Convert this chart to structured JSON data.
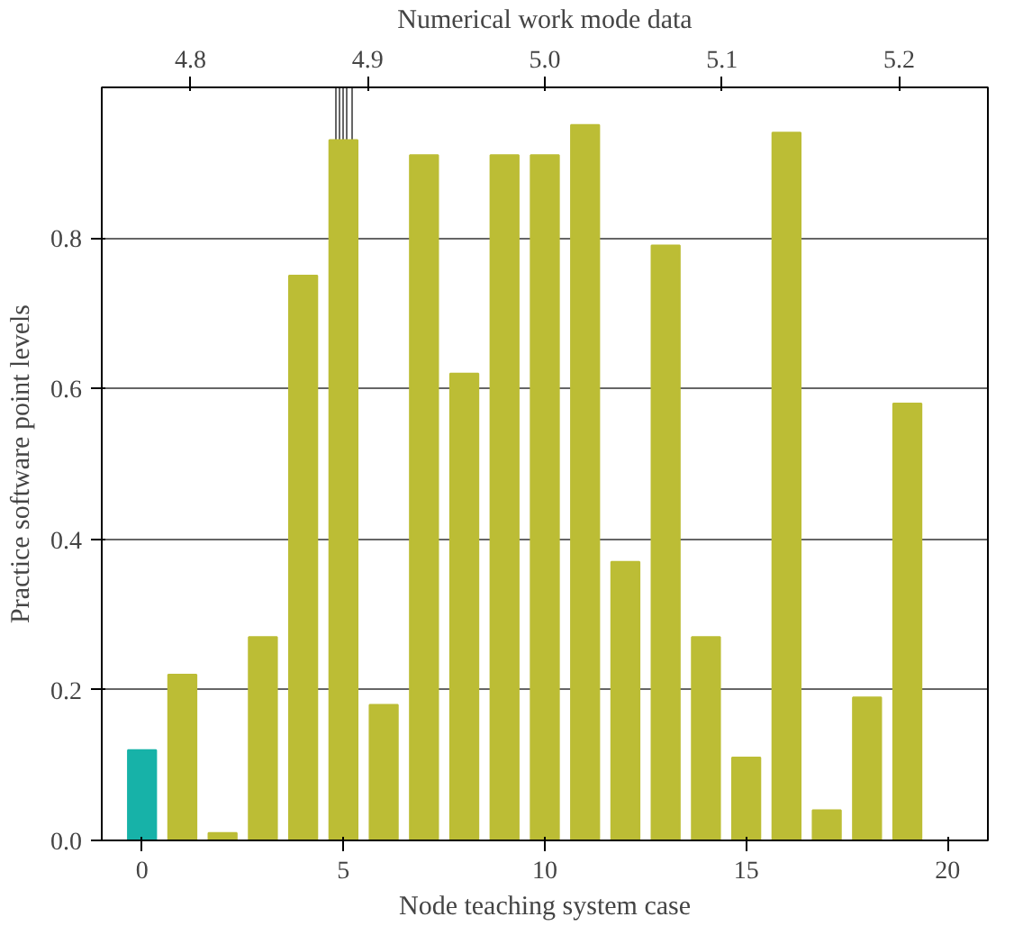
{
  "chart_data": {
    "type": "bar",
    "x": [
      0,
      1,
      2,
      3,
      4,
      5,
      6,
      7,
      8,
      9,
      10,
      11,
      12,
      13,
      14,
      15,
      16,
      17,
      18,
      19
    ],
    "values": [
      0.12,
      0.22,
      0.01,
      0.27,
      0.75,
      0.93,
      0.18,
      0.91,
      0.62,
      0.91,
      0.91,
      0.95,
      0.37,
      0.79,
      0.27,
      0.11,
      0.94,
      0.04,
      0.19,
      0.58
    ],
    "colors": [
      "#17b2a8",
      "#bcbd35",
      "#bcbd35",
      "#bcbd35",
      "#bcbd35",
      "#bcbd35",
      "#bcbd35",
      "#bcbd35",
      "#bcbd35",
      "#bcbd35",
      "#bcbd35",
      "#bcbd35",
      "#bcbd35",
      "#bcbd35",
      "#bcbd35",
      "#bcbd35",
      "#bcbd35",
      "#bcbd35",
      "#bcbd35",
      "#bcbd35"
    ],
    "xlabel": "Node teaching system case",
    "ylabel": "Practice software point levels",
    "x2label": "Numerical work mode data",
    "xlim": [
      -1,
      21
    ],
    "xticks": [
      0,
      5,
      10,
      15,
      20
    ],
    "ylim": [
      0,
      1.0
    ],
    "yticks": [
      {
        "value": 0,
        "label": "0.0"
      },
      {
        "value": 0.2,
        "label": "0.2"
      },
      {
        "value": 0.4,
        "label": "0.4"
      },
      {
        "value": 0.6,
        "label": "0.6"
      },
      {
        "value": 0.8,
        "label": "0.8"
      }
    ],
    "x2lim": [
      4.75,
      5.25
    ],
    "x2ticks": [
      4.8,
      4.9,
      {
        "value": 5,
        "label": "5.0"
      },
      5.1,
      5.2
    ],
    "grid": true
  }
}
